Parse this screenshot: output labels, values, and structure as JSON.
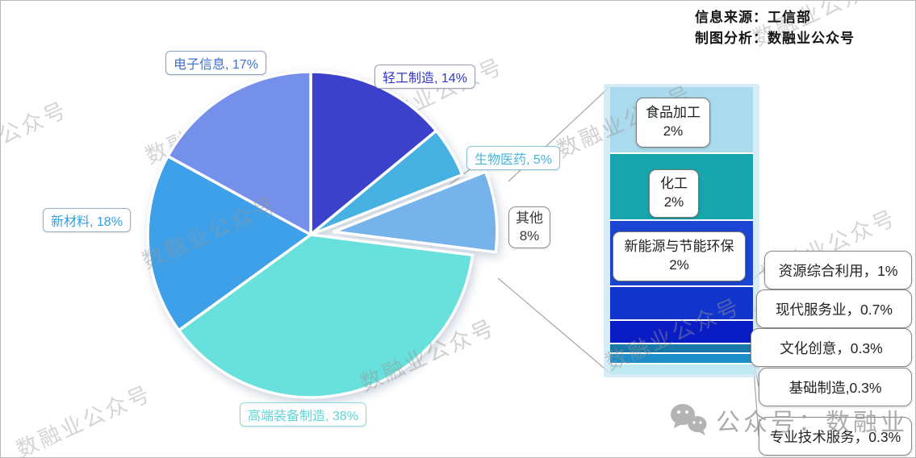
{
  "meta": {
    "source_line1": "信息来源：工信部",
    "source_line2": "制图分析：数融业公众号"
  },
  "watermark": {
    "text": "数融业公众号",
    "footer": "公众号：数融业"
  },
  "chart_data": [
    {
      "type": "pie",
      "title": "",
      "start_angle_deg": 0,
      "direction": "clockwise",
      "slices": [
        {
          "name": "轻工制造",
          "value": 14,
          "color": "#3b41cb",
          "label": "轻工制造, 14%",
          "label_color": "#3237c4",
          "box_border": "#9a9fae"
        },
        {
          "name": "生物医药",
          "value": 5,
          "color": "#47b2e2",
          "label": "生物医药, 5%",
          "label_color": "#4ab4d8",
          "box_border": "#85c4d8"
        },
        {
          "name": "其他",
          "value": 8,
          "color": "#76b3ea",
          "label": "其他",
          "label2": "8%",
          "label_color": "#3a3a3a",
          "box_border": "#8a8a8a",
          "exploded": true
        },
        {
          "name": "高端装备制造",
          "value": 38,
          "color": "#68e0dc",
          "label": "高端装备制造, 38%",
          "label_color": "#5fd4d6",
          "box_border": "#92d8da"
        },
        {
          "name": "新材料",
          "value": 18,
          "color": "#3da0e8",
          "label": "新材料, 18%",
          "label_color": "#339ee2",
          "box_border": "#9aaec0"
        },
        {
          "name": "电子信息",
          "value": 17,
          "color": "#7590ea",
          "label": "电子信息, 17%",
          "label_color": "#4170d0",
          "box_border": "#8f9fc4"
        }
      ]
    },
    {
      "type": "bar",
      "title": "其他 8% 细分（堆积条）",
      "segments": [
        {
          "name": "食品加工",
          "value": 2,
          "color": "#a9daed",
          "label": "食品加工",
          "label2": "2%"
        },
        {
          "name": "化工",
          "value": 2,
          "color": "#17a6ad",
          "label": "化工",
          "label2": "2%"
        },
        {
          "name": "新能源与节能环保",
          "value": 2,
          "color": "#1d45d3",
          "label": "新能源与节能环保",
          "label2": "2%"
        },
        {
          "name": "资源综合利用",
          "value": 1,
          "color": "#1134cc",
          "callout": "资源综合利用，1%"
        },
        {
          "name": "现代服务业",
          "value": 0.7,
          "color": "#0a1cc3",
          "callout": "现代服务业，0.7%"
        },
        {
          "name": "文化创意",
          "value": 0.3,
          "color": "#1878a8",
          "callout": "文化创意，0.3%"
        },
        {
          "name": "基础制造",
          "value": 0.3,
          "color": "#1e8ec8",
          "callout": "基础制造,0.3%"
        },
        {
          "name": "专业技术服务",
          "value": 0.3,
          "color": "#bfe9f1",
          "callout": "专业技术服务，0.3%"
        }
      ]
    }
  ]
}
